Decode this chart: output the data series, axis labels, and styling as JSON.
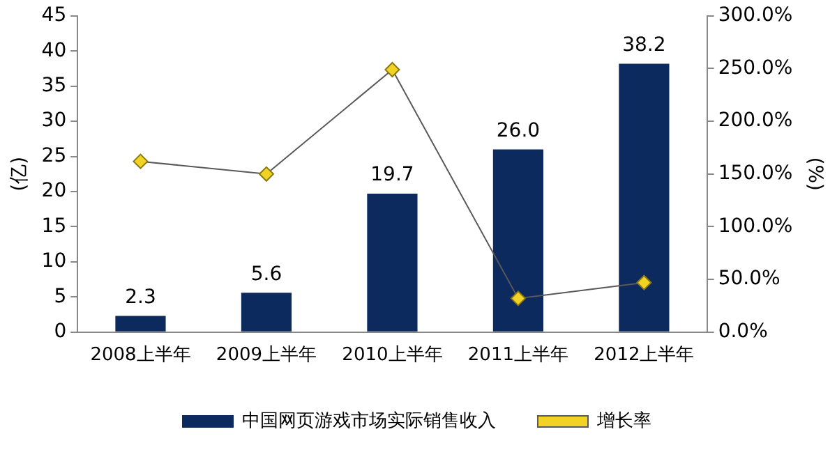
{
  "chart_data": {
    "type": "bar",
    "categories": [
      "2008上半年",
      "2009上半年",
      "2010上半年",
      "2011上半年",
      "2012上半年"
    ],
    "ylabel": "(亿)",
    "y2label": "(%)",
    "series": [
      {
        "name": "中国网页游戏市场实际销售收入",
        "color": "#0c2a5e",
        "values": [
          2.3,
          5.6,
          19.7,
          26.0,
          38.2
        ],
        "value_labels": [
          "2.3",
          "5.6",
          "19.7",
          "26.0",
          "38.2"
        ]
      },
      {
        "name": "增长率",
        "type": "line",
        "axis": "y2",
        "color": "#595959",
        "values": [
          162,
          150,
          249,
          32,
          47
        ]
      }
    ],
    "ylim": [
      0,
      45
    ],
    "yticks": [
      0,
      5,
      10,
      15,
      20,
      25,
      30,
      35,
      40,
      45
    ],
    "y2lim": [
      0,
      300
    ],
    "y2ticks": [
      {
        "value": 0,
        "label": "0.0%"
      },
      {
        "value": 50,
        "label": "50.0%"
      },
      {
        "value": 100,
        "label": "100.0%"
      },
      {
        "value": 150,
        "label": "150.0%"
      },
      {
        "value": 200,
        "label": "200.0%"
      },
      {
        "value": 250,
        "label": "250.0%"
      },
      {
        "value": 300,
        "label": "300.0%"
      }
    ],
    "grid": false,
    "legend": "bottom",
    "marker": "diamond",
    "line_style": "solid"
  }
}
